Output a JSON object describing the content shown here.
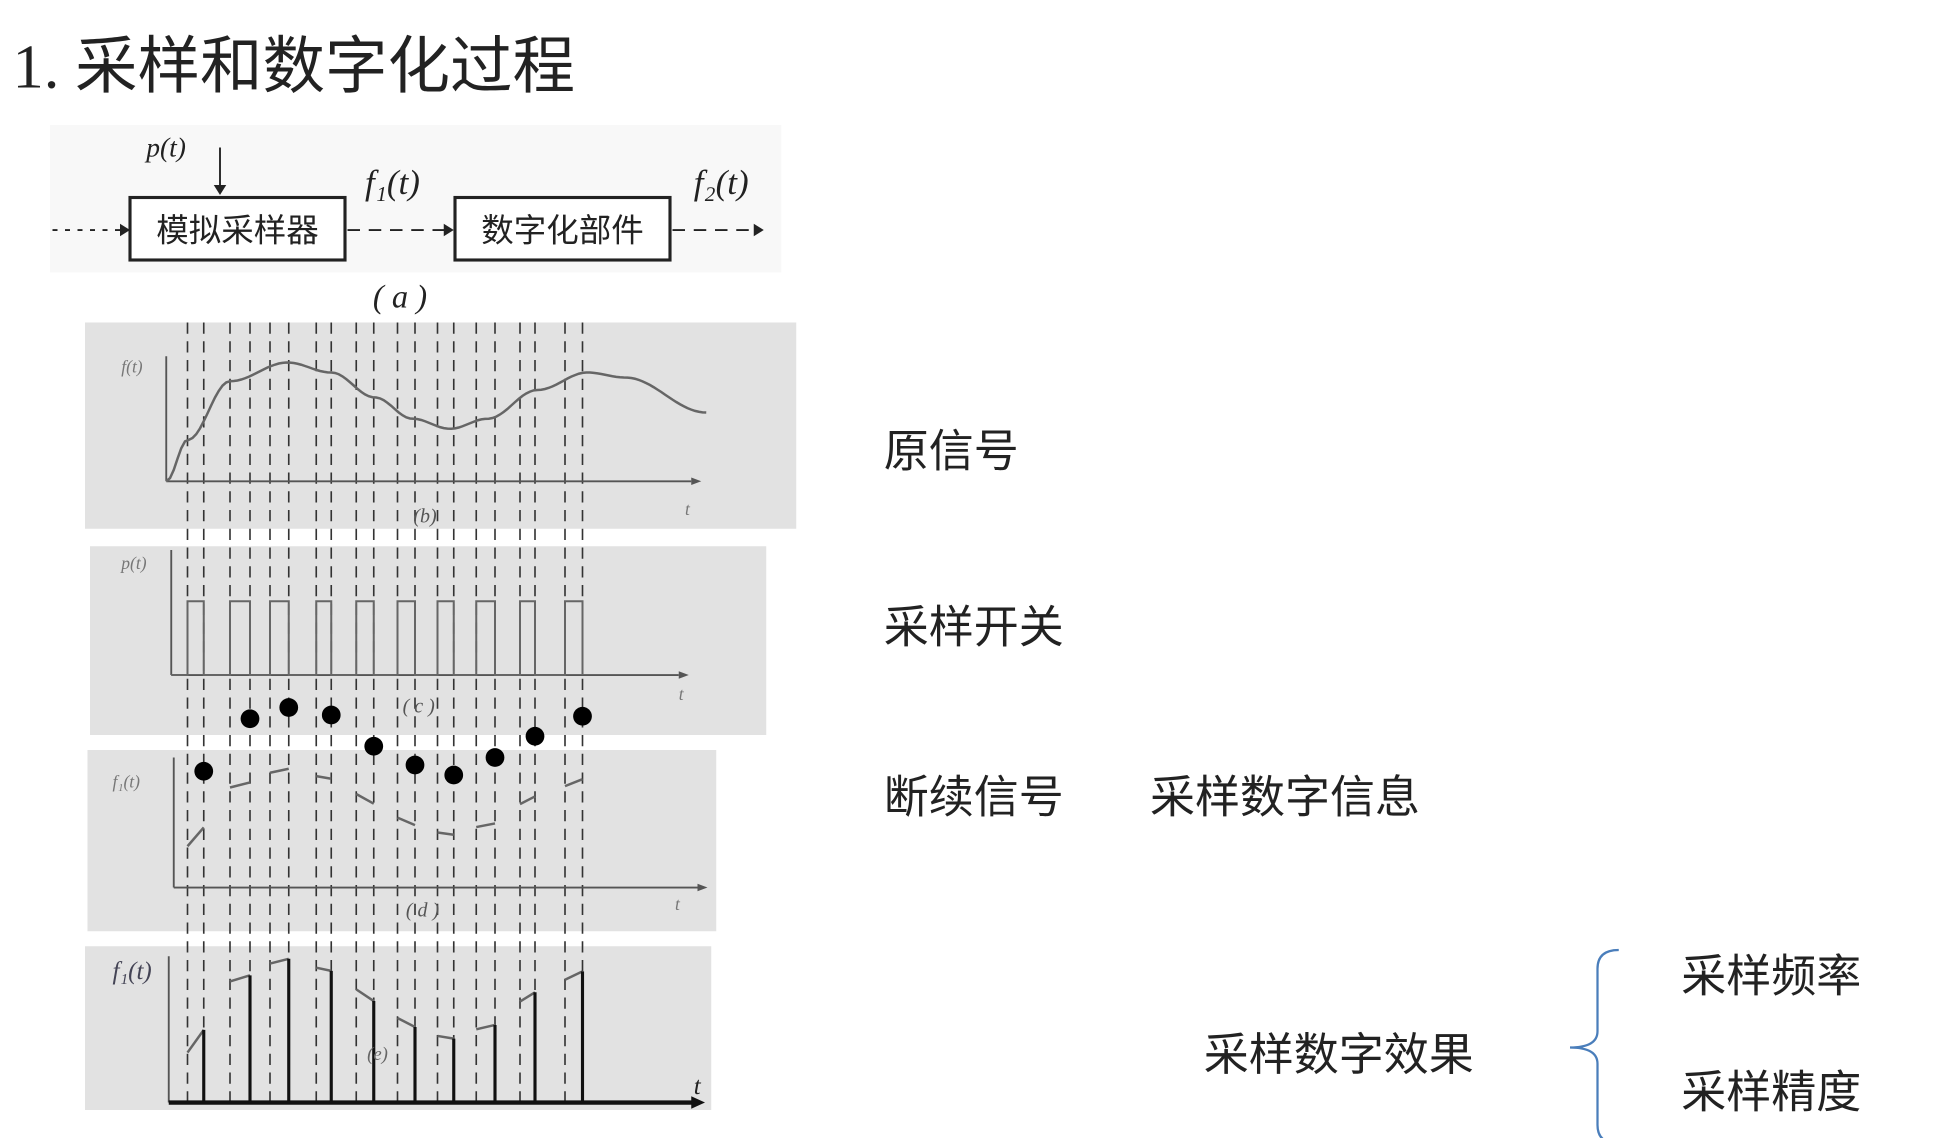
{
  "title": "1.   采样和数字化过程",
  "diagram": {
    "input_signal": "p(t)",
    "block1": "模拟采样器",
    "output1": "f₁(t)",
    "block2": "数字化部件",
    "output2": "f₂(t)",
    "caption_a": "( a )"
  },
  "panels": {
    "b": {
      "ylabel": "f(t)",
      "xlabel": "t",
      "caption": "(b)"
    },
    "c": {
      "ylabel": "p(t)",
      "xlabel": "t",
      "caption": "( c )"
    },
    "d": {
      "ylabel": "f₁(t)",
      "xlabel": "t",
      "caption": "( d )"
    },
    "e": {
      "ylabel": "f₁(t)",
      "xlabel": "t",
      "caption": "(e)"
    }
  },
  "labels": {
    "original_signal": "原信号",
    "sampling_switch": "采样开关",
    "discrete_signal": "断续信号",
    "sampled_digital_info": "采样数字信息",
    "sampling_effect": "采样数字效果",
    "sampling_frequency": "采样频率",
    "sampling_precision": "采样精度"
  },
  "colors": {
    "panel_bg": "#e2e2e2",
    "ink": "#222222",
    "curve": "#666666"
  }
}
